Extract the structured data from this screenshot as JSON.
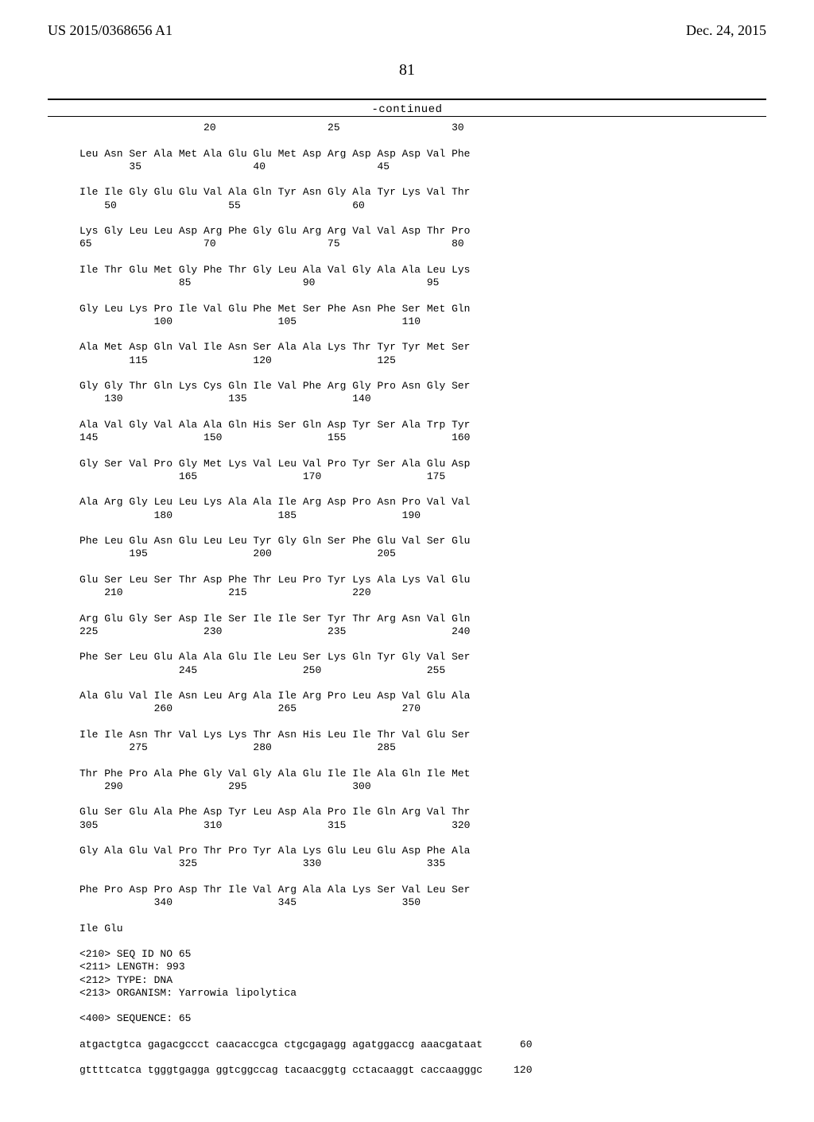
{
  "header": {
    "left": "US 2015/0368656 A1",
    "right": "Dec. 24, 2015"
  },
  "page_number": "81",
  "continued_label": "-continued",
  "sequence_blocks": [
    {
      "aa": "                    20                  25                  30",
      "nm": "",
      "single": true
    },
    {
      "aa": "Leu Asn Ser Ala Met Ala Glu Glu Met Asp Arg Asp Asp Asp Val Phe",
      "nm": "        35                  40                  45"
    },
    {
      "aa": "Ile Ile Gly Glu Glu Val Ala Gln Tyr Asn Gly Ala Tyr Lys Val Thr",
      "nm": "    50                  55                  60"
    },
    {
      "aa": "Lys Gly Leu Leu Asp Arg Phe Gly Glu Arg Arg Val Val Asp Thr Pro",
      "nm": "65                  70                  75                  80"
    },
    {
      "aa": "Ile Thr Glu Met Gly Phe Thr Gly Leu Ala Val Gly Ala Ala Leu Lys",
      "nm": "                85                  90                  95"
    },
    {
      "aa": "Gly Leu Lys Pro Ile Val Glu Phe Met Ser Phe Asn Phe Ser Met Gln",
      "nm": "            100                 105                 110"
    },
    {
      "aa": "Ala Met Asp Gln Val Ile Asn Ser Ala Ala Lys Thr Tyr Tyr Met Ser",
      "nm": "        115                 120                 125"
    },
    {
      "aa": "Gly Gly Thr Gln Lys Cys Gln Ile Val Phe Arg Gly Pro Asn Gly Ser",
      "nm": "    130                 135                 140"
    },
    {
      "aa": "Ala Val Gly Val Ala Ala Gln His Ser Gln Asp Tyr Ser Ala Trp Tyr",
      "nm": "145                 150                 155                 160"
    },
    {
      "aa": "Gly Ser Val Pro Gly Met Lys Val Leu Val Pro Tyr Ser Ala Glu Asp",
      "nm": "                165                 170                 175"
    },
    {
      "aa": "Ala Arg Gly Leu Leu Lys Ala Ala Ile Arg Asp Pro Asn Pro Val Val",
      "nm": "            180                 185                 190"
    },
    {
      "aa": "Phe Leu Glu Asn Glu Leu Leu Tyr Gly Gln Ser Phe Glu Val Ser Glu",
      "nm": "        195                 200                 205"
    },
    {
      "aa": "Glu Ser Leu Ser Thr Asp Phe Thr Leu Pro Tyr Lys Ala Lys Val Glu",
      "nm": "    210                 215                 220"
    },
    {
      "aa": "Arg Glu Gly Ser Asp Ile Ser Ile Ile Ser Tyr Thr Arg Asn Val Gln",
      "nm": "225                 230                 235                 240"
    },
    {
      "aa": "Phe Ser Leu Glu Ala Ala Glu Ile Leu Ser Lys Gln Tyr Gly Val Ser",
      "nm": "                245                 250                 255"
    },
    {
      "aa": "Ala Glu Val Ile Asn Leu Arg Ala Ile Arg Pro Leu Asp Val Glu Ala",
      "nm": "            260                 265                 270"
    },
    {
      "aa": "Ile Ile Asn Thr Val Lys Lys Thr Asn His Leu Ile Thr Val Glu Ser",
      "nm": "        275                 280                 285"
    },
    {
      "aa": "Thr Phe Pro Ala Phe Gly Val Gly Ala Glu Ile Ile Ala Gln Ile Met",
      "nm": "    290                 295                 300"
    },
    {
      "aa": "Glu Ser Glu Ala Phe Asp Tyr Leu Asp Ala Pro Ile Gln Arg Val Thr",
      "nm": "305                 310                 315                 320"
    },
    {
      "aa": "Gly Ala Glu Val Pro Thr Pro Tyr Ala Lys Glu Leu Glu Asp Phe Ala",
      "nm": "                325                 330                 335"
    },
    {
      "aa": "Phe Pro Asp Pro Asp Thr Ile Val Arg Ala Ala Lys Ser Val Leu Ser",
      "nm": "            340                 345                 350"
    },
    {
      "aa": "Ile Glu",
      "nm": "",
      "single": true
    }
  ],
  "meta_lines": [
    "<210> SEQ ID NO 65",
    "<211> LENGTH: 993",
    "<212> TYPE: DNA",
    "<213> ORGANISM: Yarrowia lipolytica"
  ],
  "seq400": "<400> SEQUENCE: 65",
  "dna_lines": [
    {
      "seq": "atgactgtca gagacgccct caacaccgca ctgcgagagg agatggaccg aaacgataat",
      "num": "60"
    },
    {
      "seq": "gttttcatca tgggtgagga ggtcggccag tacaacggtg cctacaaggt caccaagggc",
      "num": "120"
    }
  ],
  "colors": {
    "text": "#000000",
    "background": "#ffffff",
    "rule": "#000000"
  },
  "fonts": {
    "header_family": "Times New Roman",
    "mono_family": "Courier New",
    "header_size_pt": 14,
    "pagenum_size_pt": 15,
    "mono_size_pt": 10
  }
}
